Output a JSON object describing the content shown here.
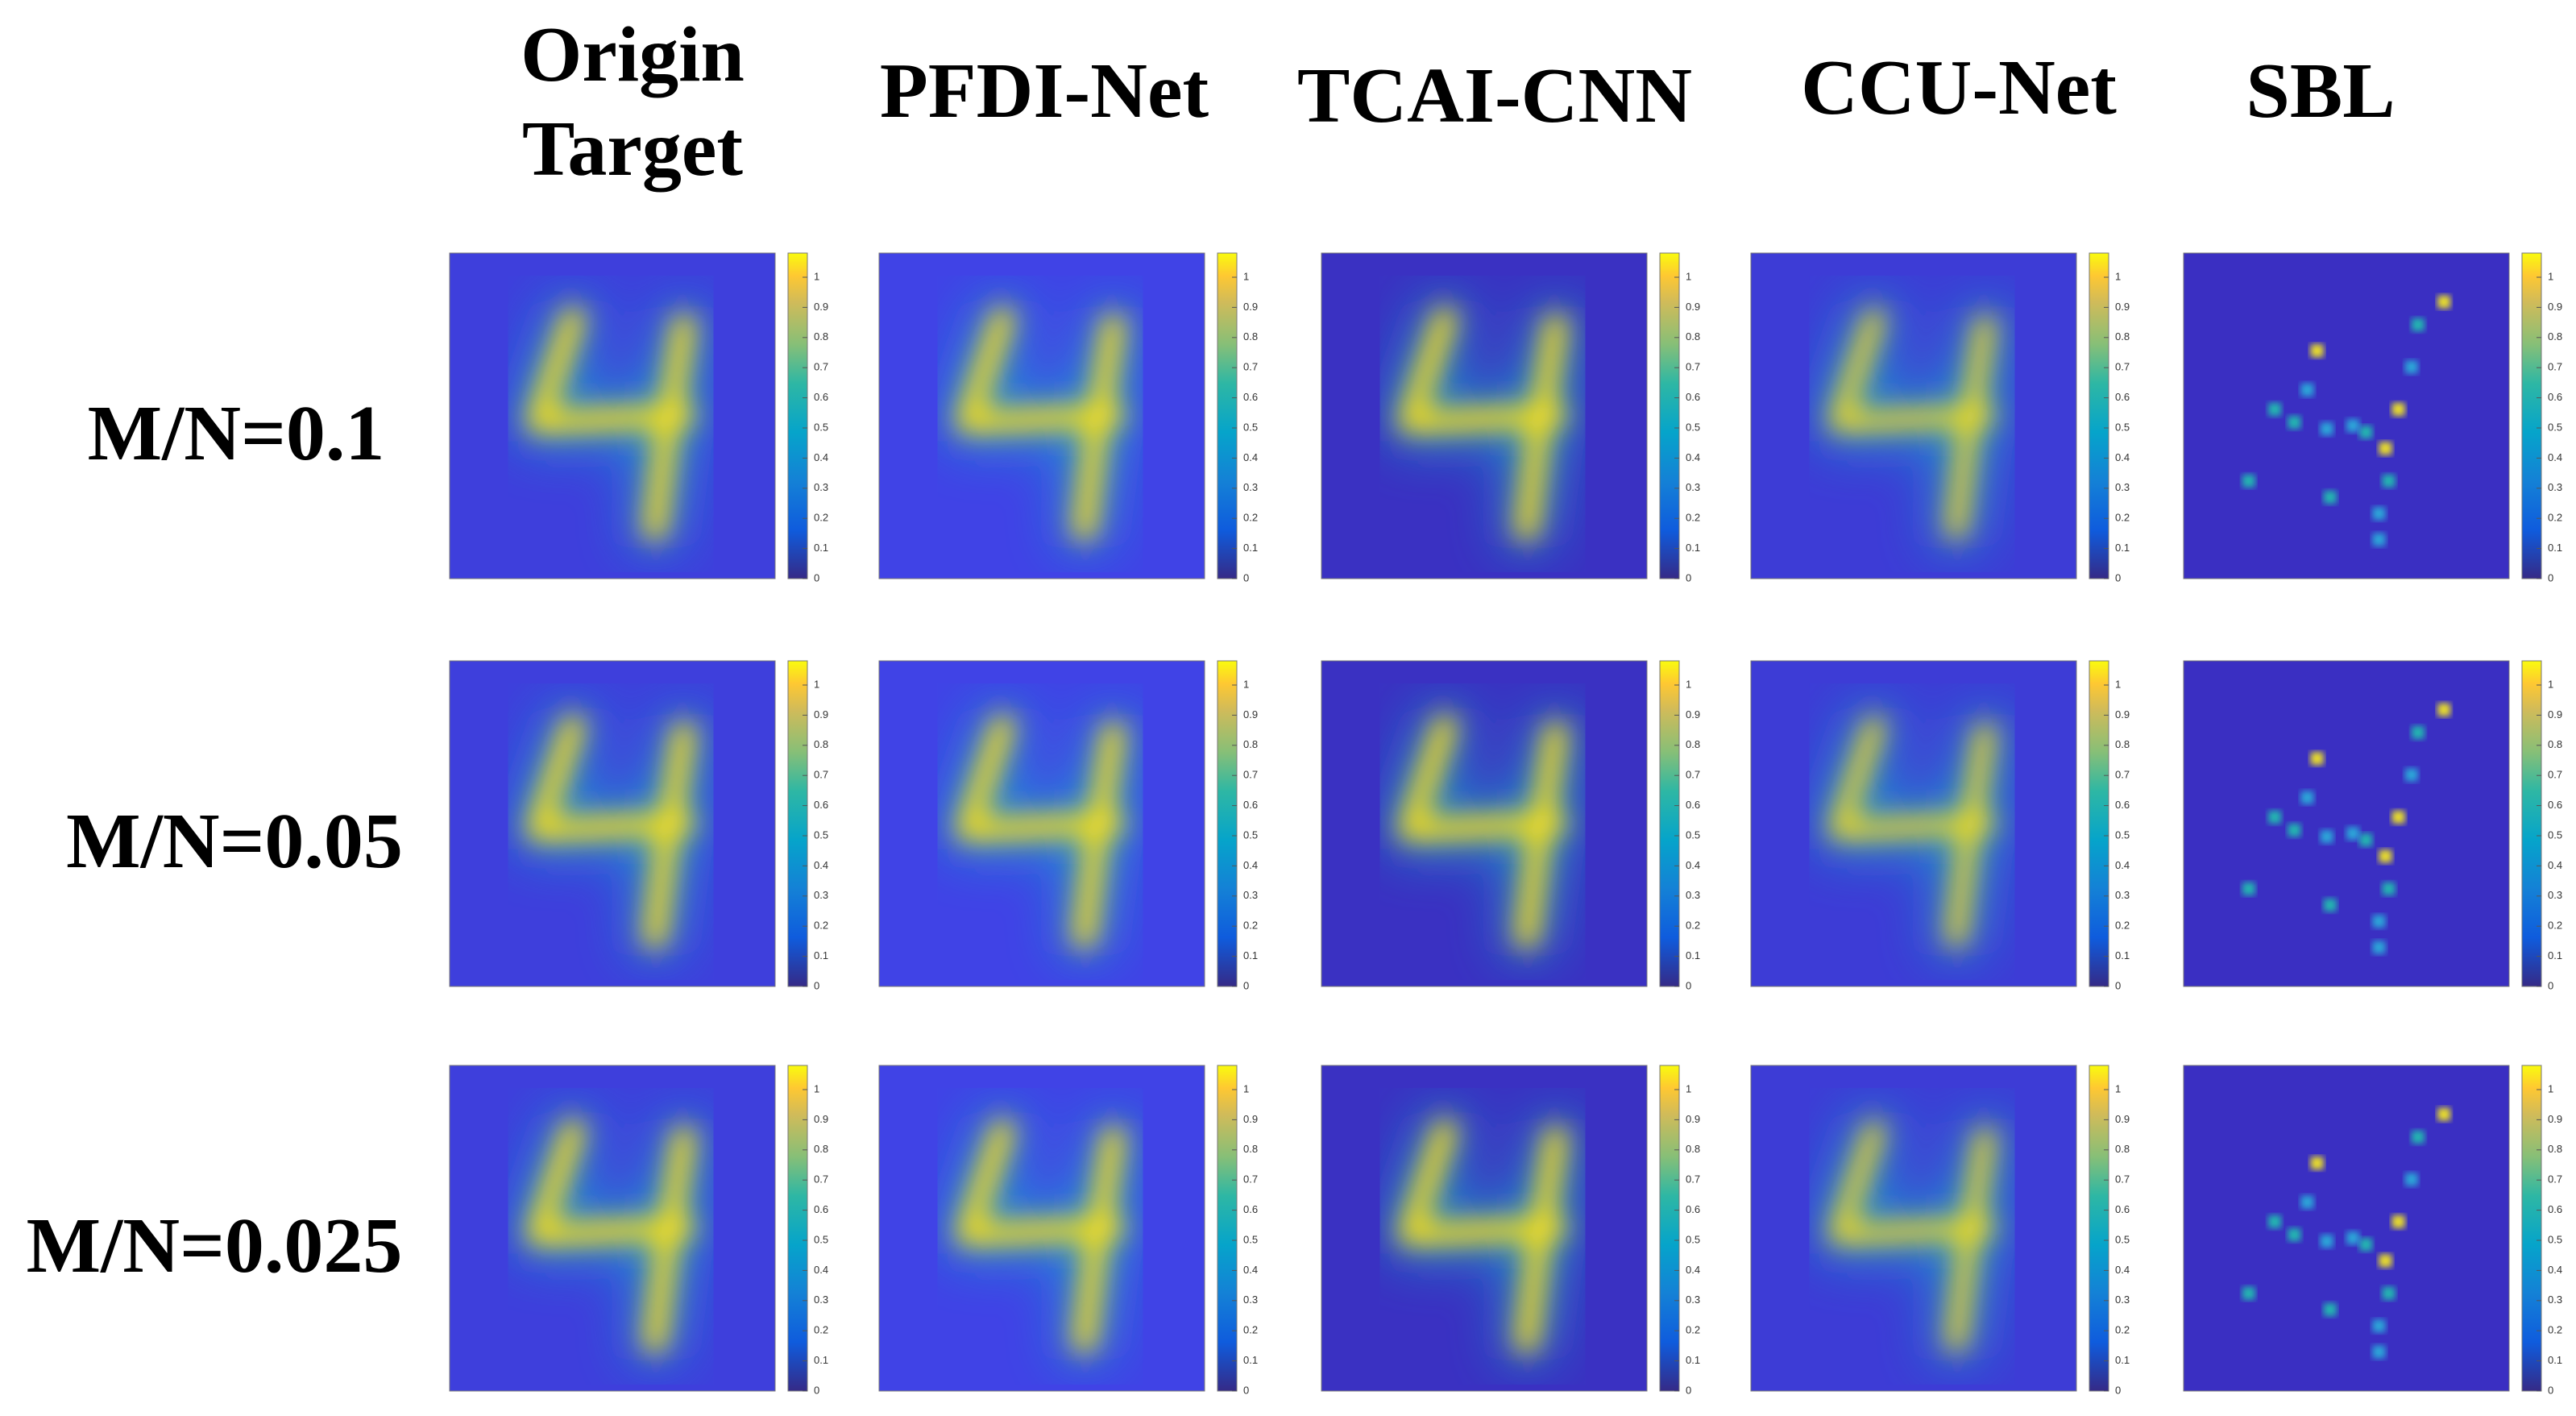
{
  "columns": [
    [
      "Origin",
      "Target"
    ],
    [
      "PFDI-Net"
    ],
    [
      "TCAI-CNN"
    ],
    [
      "CCU-Net"
    ],
    [
      "SBL"
    ]
  ],
  "rows": [
    "M/N=0.1",
    "M/N=0.05",
    "M/N=0.025"
  ],
  "colorbar_ticks": [
    0,
    0.1,
    0.2,
    0.3,
    0.4,
    0.5,
    0.6,
    0.7,
    0.8,
    0.9,
    1
  ]
}
